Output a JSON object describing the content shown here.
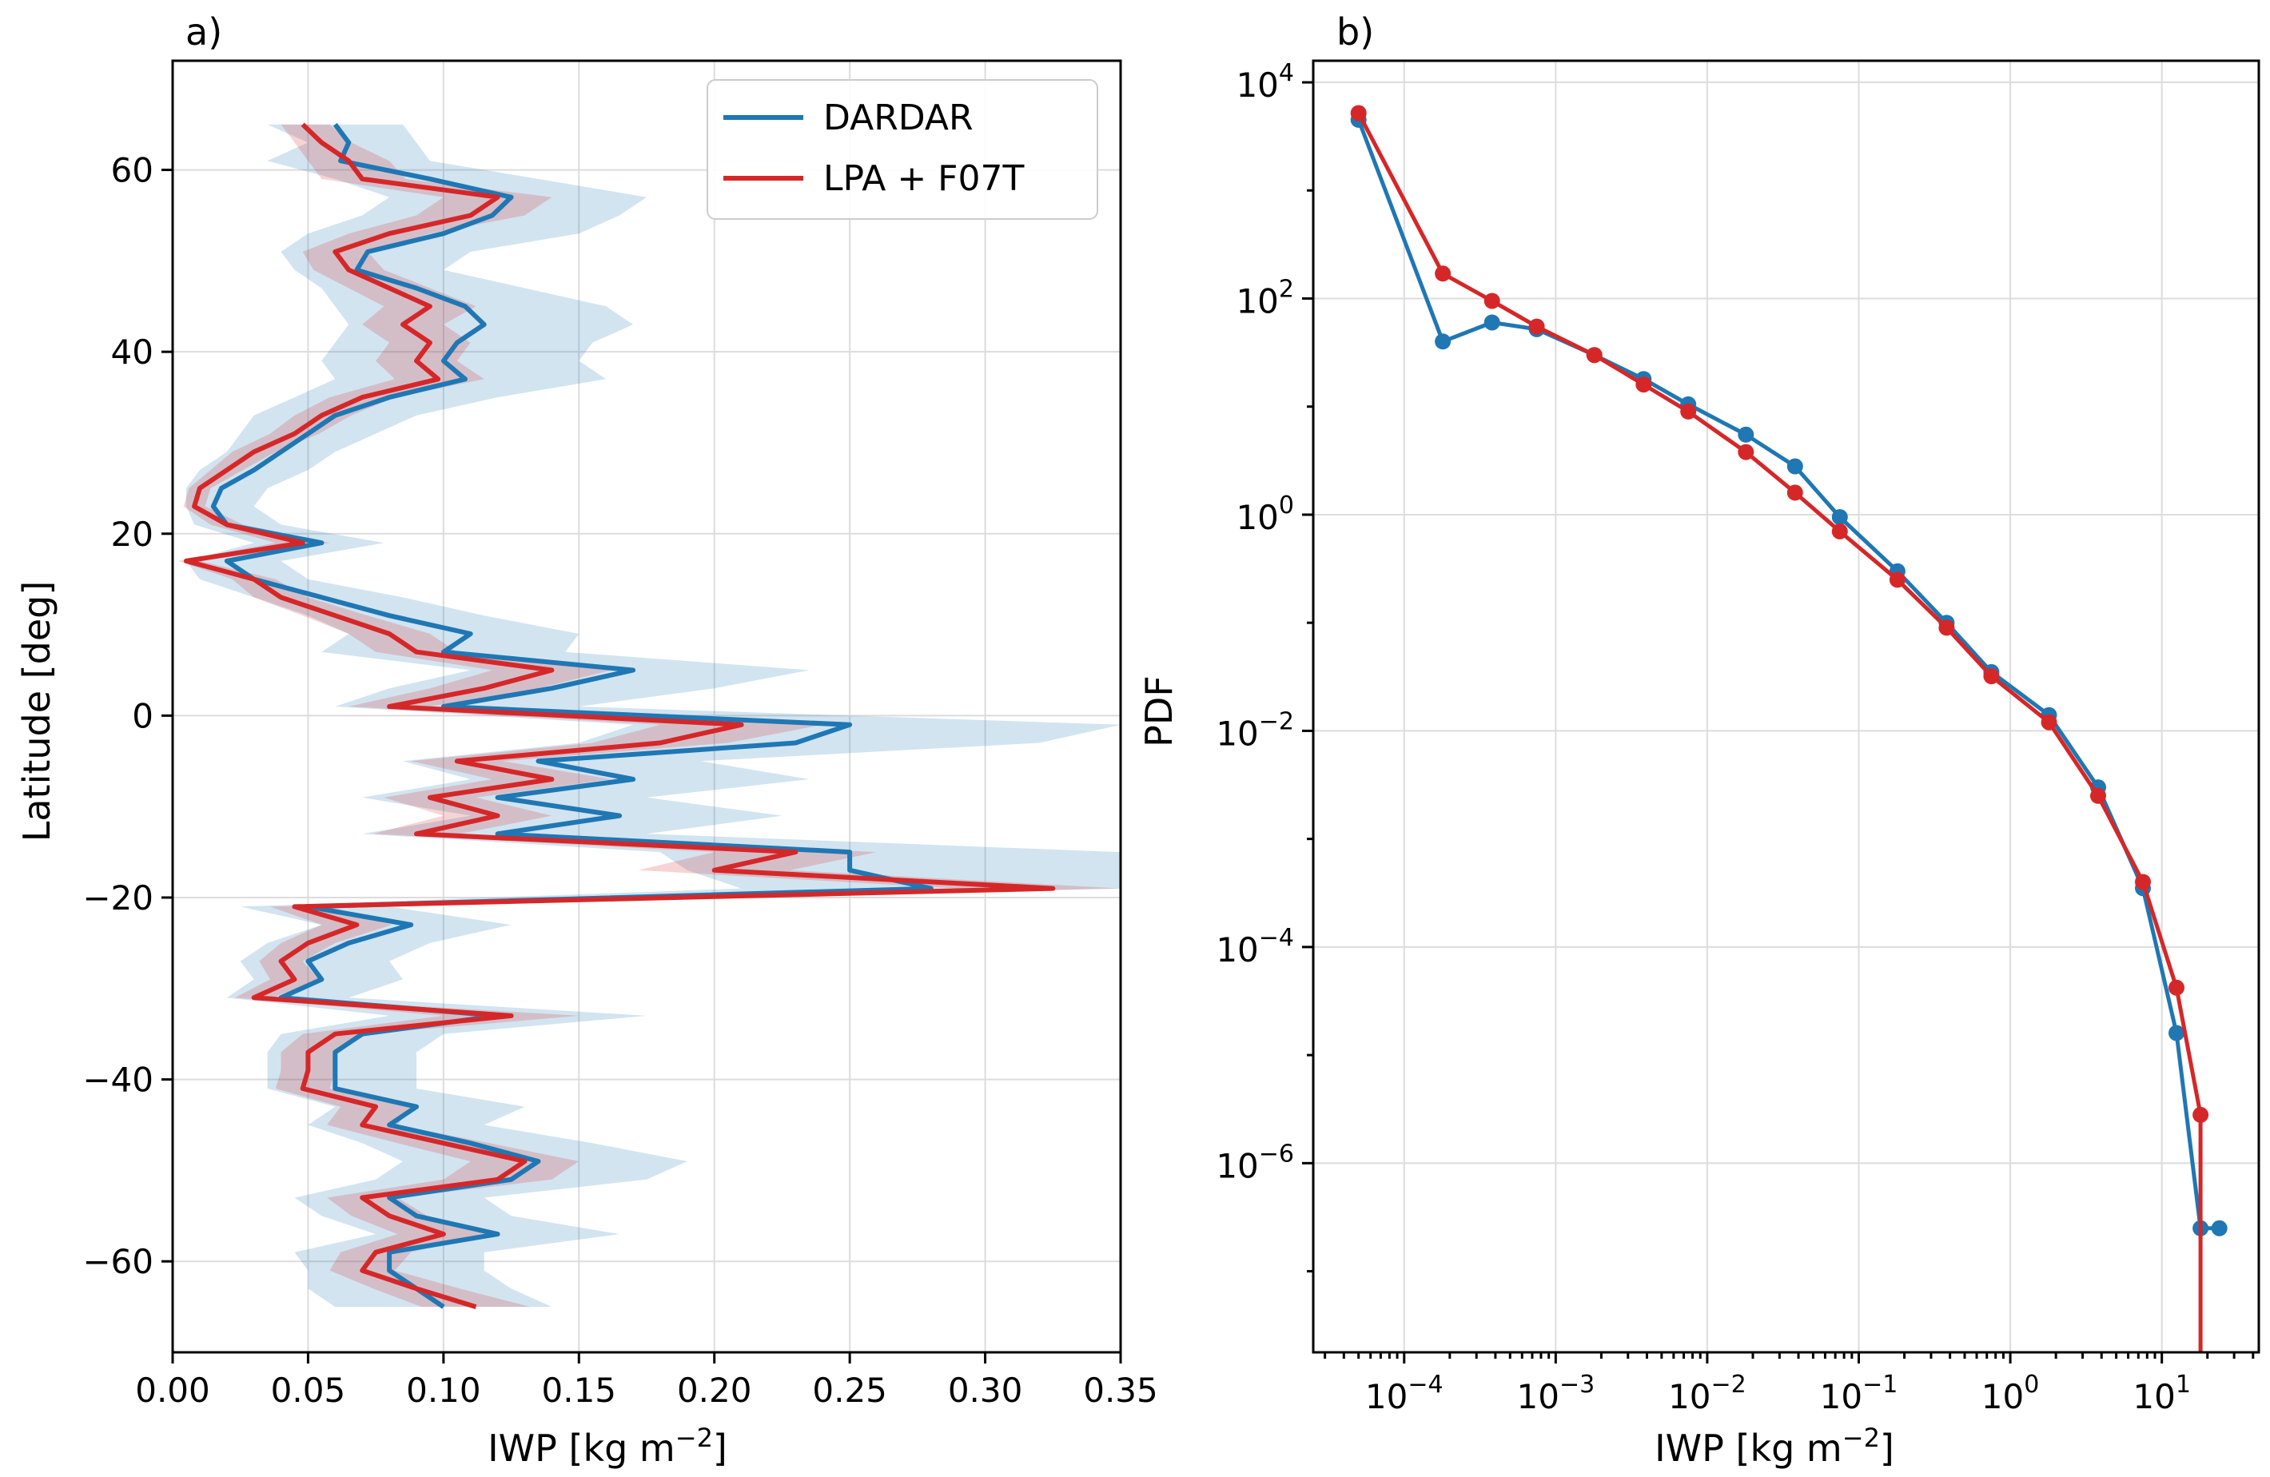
{
  "chart_data": [
    {
      "type": "line",
      "panel_label": "a)",
      "xlabel": "IWP [kg m",
      "xlabel_sup": "−2",
      "xlabel_close": "]",
      "ylabel": "Latitude [deg]",
      "xlim": [
        0,
        0.35
      ],
      "ylim": [
        -70,
        72
      ],
      "xticks": [
        "0.00",
        "0.05",
        "0.10",
        "0.15",
        "0.20",
        "0.25",
        "0.30",
        "0.35"
      ],
      "yticks": [
        "−60",
        "−40",
        "−20",
        "0",
        "20",
        "40",
        "60"
      ],
      "xtick_values": [
        0,
        0.05,
        0.1,
        0.15,
        0.2,
        0.25,
        0.3,
        0.35
      ],
      "ytick_values": [
        -60,
        -40,
        -20,
        0,
        20,
        40,
        60
      ],
      "latitudes": [
        65,
        63,
        61,
        59,
        57,
        55,
        53,
        51,
        49,
        47,
        45,
        43,
        41,
        39,
        37,
        35,
        33,
        31,
        29,
        27,
        25,
        23,
        21,
        19,
        17,
        15,
        13,
        11,
        9,
        7,
        5,
        3,
        1,
        -1,
        -3,
        -5,
        -7,
        -9,
        -11,
        -13,
        -15,
        -17,
        -19,
        -21,
        -23,
        -25,
        -27,
        -29,
        -31,
        -33,
        -35,
        -37,
        -39,
        -41,
        -43,
        -45,
        -47,
        -49,
        -51,
        -53,
        -55,
        -57,
        -59,
        -61,
        -63,
        -65
      ],
      "series": [
        {
          "name": "DARDAR",
          "color": "#1f77b4",
          "values": [
            0.06,
            0.065,
            0.062,
            0.095,
            0.125,
            0.118,
            0.1,
            0.072,
            0.068,
            0.09,
            0.108,
            0.115,
            0.105,
            0.1,
            0.108,
            0.08,
            0.06,
            0.05,
            0.04,
            0.03,
            0.018,
            0.015,
            0.02,
            0.055,
            0.02,
            0.03,
            0.055,
            0.08,
            0.11,
            0.1,
            0.17,
            0.14,
            0.1,
            0.25,
            0.23,
            0.135,
            0.17,
            0.12,
            0.165,
            0.12,
            0.25,
            0.25,
            0.28,
            0.05,
            0.088,
            0.065,
            0.05,
            0.055,
            0.04,
            0.12,
            0.07,
            0.06,
            0.06,
            0.06,
            0.09,
            0.08,
            0.11,
            0.135,
            0.125,
            0.08,
            0.09,
            0.12,
            0.08,
            0.08,
            0.09,
            0.1
          ],
          "band_lo": [
            0.035,
            0.05,
            0.035,
            0.06,
            0.08,
            0.07,
            0.05,
            0.04,
            0.045,
            0.055,
            0.06,
            0.065,
            0.06,
            0.055,
            0.06,
            0.045,
            0.03,
            0.025,
            0.02,
            0.01,
            0.005,
            0.005,
            0.008,
            0.03,
            0.005,
            0.01,
            0.03,
            0.05,
            0.065,
            0.055,
            0.11,
            0.08,
            0.06,
            0.17,
            0.15,
            0.085,
            0.11,
            0.07,
            0.11,
            0.07,
            0.18,
            0.19,
            0.21,
            0.025,
            0.055,
            0.035,
            0.025,
            0.03,
            0.02,
            0.08,
            0.04,
            0.035,
            0.035,
            0.035,
            0.06,
            0.05,
            0.07,
            0.085,
            0.075,
            0.045,
            0.055,
            0.075,
            0.045,
            0.05,
            0.05,
            0.06
          ],
          "band_hi": [
            0.085,
            0.09,
            0.095,
            0.135,
            0.175,
            0.165,
            0.15,
            0.11,
            0.1,
            0.13,
            0.16,
            0.17,
            0.155,
            0.15,
            0.16,
            0.12,
            0.09,
            0.075,
            0.06,
            0.05,
            0.035,
            0.03,
            0.04,
            0.078,
            0.04,
            0.05,
            0.085,
            0.115,
            0.15,
            0.145,
            0.235,
            0.2,
            0.15,
            0.35,
            0.32,
            0.195,
            0.235,
            0.175,
            0.225,
            0.175,
            0.35,
            0.35,
            0.35,
            0.08,
            0.125,
            0.095,
            0.08,
            0.085,
            0.065,
            0.175,
            0.1,
            0.09,
            0.09,
            0.09,
            0.13,
            0.115,
            0.155,
            0.19,
            0.175,
            0.115,
            0.125,
            0.165,
            0.115,
            0.115,
            0.125,
            0.14
          ]
        },
        {
          "name": "LPA + F07T",
          "color": "#d62728",
          "values": [
            0.048,
            0.055,
            0.065,
            0.07,
            0.12,
            0.11,
            0.08,
            0.06,
            0.065,
            0.08,
            0.095,
            0.085,
            0.095,
            0.09,
            0.098,
            0.07,
            0.055,
            0.045,
            0.03,
            0.02,
            0.01,
            0.008,
            0.02,
            0.048,
            0.005,
            0.03,
            0.04,
            0.06,
            0.08,
            0.09,
            0.14,
            0.115,
            0.08,
            0.21,
            0.18,
            0.105,
            0.14,
            0.095,
            0.12,
            0.09,
            0.23,
            0.2,
            0.325,
            0.045,
            0.068,
            0.05,
            0.04,
            0.045,
            0.03,
            0.125,
            0.06,
            0.05,
            0.05,
            0.048,
            0.075,
            0.07,
            0.1,
            0.13,
            0.12,
            0.07,
            0.08,
            0.1,
            0.075,
            0.07,
            0.09,
            0.112
          ],
          "band_lo": [
            0.04,
            0.045,
            0.05,
            0.055,
            0.1,
            0.09,
            0.065,
            0.048,
            0.052,
            0.065,
            0.078,
            0.07,
            0.08,
            0.075,
            0.082,
            0.058,
            0.045,
            0.036,
            0.022,
            0.014,
            0.006,
            0.004,
            0.014,
            0.038,
            0.002,
            0.022,
            0.03,
            0.048,
            0.065,
            0.075,
            0.118,
            0.095,
            0.065,
            0.18,
            0.155,
            0.088,
            0.118,
            0.078,
            0.1,
            0.074,
            0.2,
            0.172,
            0.29,
            0.036,
            0.055,
            0.04,
            0.032,
            0.036,
            0.023,
            0.1,
            0.048,
            0.04,
            0.04,
            0.038,
            0.062,
            0.057,
            0.083,
            0.11,
            0.1,
            0.057,
            0.066,
            0.083,
            0.062,
            0.058,
            0.074,
            0.092
          ],
          "band_hi": [
            0.058,
            0.066,
            0.08,
            0.086,
            0.14,
            0.13,
            0.095,
            0.072,
            0.078,
            0.095,
            0.112,
            0.1,
            0.11,
            0.105,
            0.115,
            0.082,
            0.066,
            0.054,
            0.038,
            0.026,
            0.014,
            0.012,
            0.026,
            0.058,
            0.01,
            0.038,
            0.05,
            0.072,
            0.095,
            0.105,
            0.162,
            0.135,
            0.095,
            0.24,
            0.205,
            0.122,
            0.162,
            0.112,
            0.14,
            0.106,
            0.26,
            0.228,
            0.35,
            0.054,
            0.081,
            0.06,
            0.048,
            0.054,
            0.037,
            0.15,
            0.072,
            0.06,
            0.06,
            0.058,
            0.088,
            0.083,
            0.117,
            0.15,
            0.14,
            0.083,
            0.094,
            0.117,
            0.088,
            0.082,
            0.106,
            0.132
          ]
        }
      ],
      "legend": [
        "DARDAR",
        "LPA + F07T"
      ],
      "legend_position": "top-right",
      "grid": true
    },
    {
      "type": "line",
      "panel_label": "b)",
      "xlabel": "IWP [kg m",
      "xlabel_sup": "−2",
      "xlabel_close": "]",
      "ylabel": "PDF",
      "xscale": "log",
      "yscale": "log",
      "xlim_log10": [
        -4.6,
        1.64
      ],
      "ylim_log10": [
        -7.75,
        4.2
      ],
      "xticks": [
        {
          "base": "10",
          "exp": "−4",
          "log": -4
        },
        {
          "base": "10",
          "exp": "−3",
          "log": -3
        },
        {
          "base": "10",
          "exp": "−2",
          "log": -2
        },
        {
          "base": "10",
          "exp": "−1",
          "log": -1
        },
        {
          "base": "10",
          "exp": "0",
          "log": 0
        },
        {
          "base": "10",
          "exp": "1",
          "log": 1
        }
      ],
      "yticks": [
        {
          "base": "10",
          "exp": "4",
          "log": 4
        },
        {
          "base": "10",
          "exp": "2",
          "log": 2
        },
        {
          "base": "10",
          "exp": "0",
          "log": 0
        },
        {
          "base": "10",
          "exp": "−2",
          "log": -2
        },
        {
          "base": "10",
          "exp": "−4",
          "log": -4
        },
        {
          "base": "10",
          "exp": "−6",
          "log": -6
        }
      ],
      "series": [
        {
          "name": "DARDAR",
          "color": "#1f77b4",
          "x": [
            5e-05,
            0.00018,
            0.00038,
            0.00075,
            0.0018,
            0.0038,
            0.0075,
            0.018,
            0.038,
            0.075,
            0.18,
            0.38,
            0.75,
            1.8,
            3.8,
            7.5,
            12.5,
            18,
            24
          ],
          "y": [
            4500,
            40,
            60,
            52,
            30,
            18,
            10.5,
            5.5,
            2.8,
            0.95,
            0.3,
            0.1,
            0.035,
            0.014,
            0.003,
            0.00035,
            1.6e-05,
            2.5e-07,
            2.5e-07
          ],
          "tail_to_bottom": false
        },
        {
          "name": "LPA + F07T",
          "color": "#d62728",
          "x": [
            5e-05,
            0.00018,
            0.00038,
            0.00075,
            0.0018,
            0.0038,
            0.0075,
            0.018,
            0.038,
            0.075,
            0.18,
            0.38,
            0.75,
            1.8,
            3.8,
            7.5,
            12.5,
            18
          ],
          "y": [
            5200,
            170,
            95,
            55,
            30,
            16,
            9,
            3.8,
            1.6,
            0.7,
            0.25,
            0.09,
            0.032,
            0.012,
            0.0025,
            0.0004,
            4.2e-05,
            2.8e-06
          ],
          "tail_to_bottom": true
        }
      ],
      "grid": true
    }
  ]
}
